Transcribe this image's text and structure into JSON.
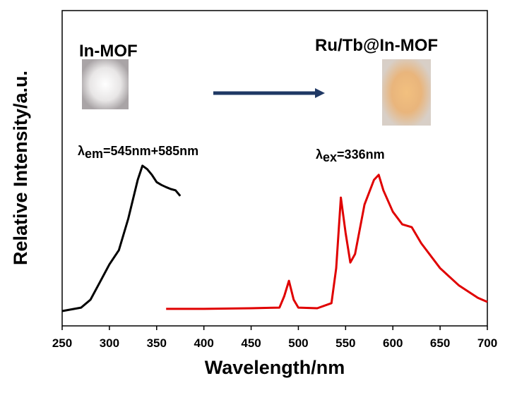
{
  "chart_data": {
    "type": "line",
    "xlabel": "Wavelength/nm",
    "ylabel": "Relative Intensity/a.u.",
    "xlim": [
      250,
      700
    ],
    "xticks": [
      250,
      300,
      350,
      400,
      450,
      500,
      550,
      600,
      650,
      700
    ],
    "ylim": [
      0,
      100
    ],
    "annotations": {
      "left_sample": "In-MOF",
      "right_sample": "Ru/Tb@In-MOF",
      "em_symbol": "λ",
      "em_sub": "em",
      "em_text": "=545nm+585nm",
      "ex_symbol": "λ",
      "ex_sub": "ex",
      "ex_text": "=336nm"
    },
    "series": [
      {
        "color": "#000000",
        "x": [
          250,
          270,
          280,
          290,
          300,
          310,
          320,
          330,
          335,
          340,
          345,
          350,
          355,
          360,
          365,
          370,
          375
        ],
        "values": [
          4.7,
          5.8,
          8.3,
          13.9,
          19.5,
          24,
          34,
          46.3,
          50.8,
          49.7,
          47.9,
          45.6,
          44.7,
          44,
          43.4,
          43,
          41.2
        ]
      },
      {
        "color": "#e00000",
        "x": [
          360,
          400,
          450,
          480,
          485,
          490,
          495,
          500,
          520,
          535,
          540,
          545,
          550,
          555,
          560,
          570,
          580,
          585,
          590,
          600,
          610,
          620,
          630,
          650,
          670,
          690,
          700
        ],
        "values": [
          5.4,
          5.4,
          5.6,
          5.8,
          9.4,
          14.3,
          8.3,
          5.8,
          5.6,
          7.2,
          18.3,
          40.7,
          29.5,
          20.1,
          22.8,
          38.5,
          46.3,
          47.9,
          43,
          36.2,
          32.2,
          31.3,
          26.2,
          18.3,
          12.8,
          8.9,
          7.6
        ]
      }
    ]
  }
}
